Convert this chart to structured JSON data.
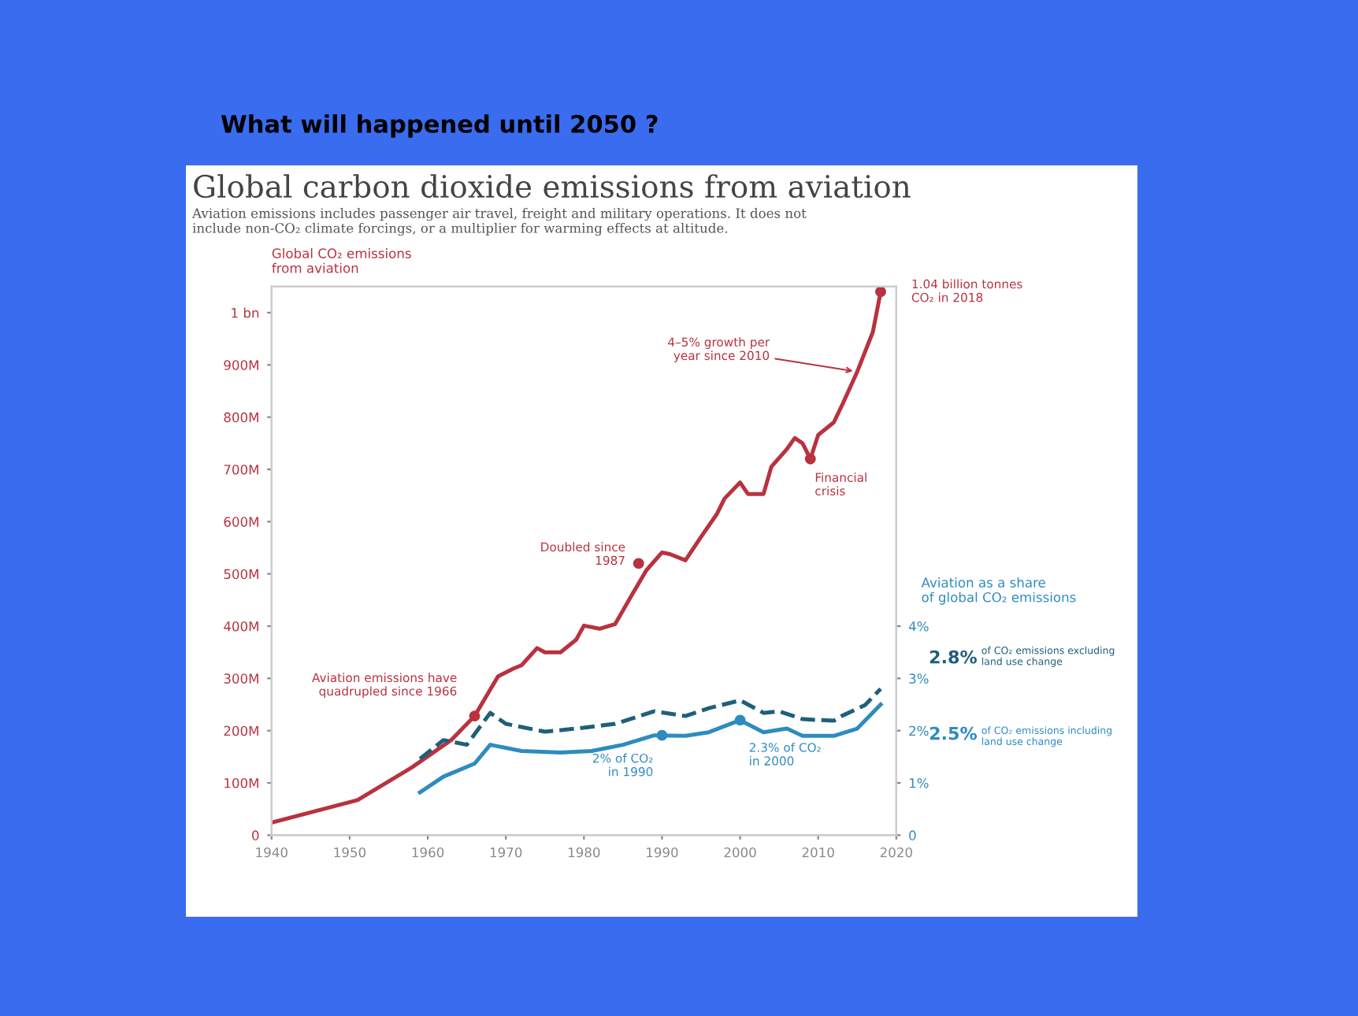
{
  "chart_data": {
    "type": "line",
    "title": "What will happened until 2050 ?",
    "subtitle": "Global carbon dioxide emissions from aviation",
    "ylabel": "Global CO₂ emissions from aviation",
    "y2label": "Aviation as a share of global CO₂ emissions",
    "annotations": [
      "Aviation emissions includes passenger air travel, freight and military operations. It does not include non-CO₂ climate forcings, or a multiplier for warming effects at altitude.",
      {
        "text": "Aviation emissions have quadrupled since 1966",
        "x": 1966,
        "y": 228000000
      },
      {
        "text": "Doubled since 1987",
        "x": 1987,
        "y": 520000000
      },
      {
        "text": "Financial crisis",
        "x": 2009,
        "y": 720000000
      },
      {
        "text": "4–5% growth per year since 2010",
        "x": 2015,
        "y": 887000000
      },
      {
        "text": "1.04 billion tonnes CO₂ in 2018",
        "x": 2018,
        "y": 1040000000
      },
      {
        "text": "2% of CO₂ in 1990",
        "x": 1990,
        "y": 191000000
      },
      {
        "text": "2.3% of CO₂ in 2000",
        "x": 2000,
        "y": 220000000
      }
    ],
    "series": [
      {
        "color": "#b8323f",
        "line_style": "solid",
        "x": [
          1940,
          1951,
          1958,
          1963,
          1966,
          1969,
          1971,
          1972,
          1974,
          1975,
          1977,
          1979,
          1980,
          1982,
          1984,
          1986,
          1988,
          1990,
          1991,
          1993,
          1995,
          1997,
          1998,
          2000,
          2001,
          2003,
          2004,
          2006,
          2007,
          2008,
          2009,
          2010,
          2012,
          2013,
          2015,
          2017,
          2018
        ],
        "values": [
          24000000,
          67000000,
          130000000,
          182000000,
          228000000,
          304000000,
          319000000,
          325000000,
          358000000,
          350000000,
          350000000,
          374000000,
          401000000,
          395000000,
          404000000,
          456000000,
          507000000,
          541000000,
          538000000,
          526000000,
          571000000,
          614000000,
          644000000,
          675000000,
          653000000,
          653000000,
          705000000,
          739000000,
          760000000,
          750000000,
          720000000,
          766000000,
          790000000,
          821000000,
          887000000,
          963000000,
          1040000000
        ]
      },
      {
        "name": "2.8% of CO₂ emissions excluding land use change",
        "axis": "y2",
        "color": "#1f5f7a",
        "line_style": "dashed",
        "x": [
          1959,
          1962,
          1965,
          1968,
          1970,
          1975,
          1979,
          1984,
          1989,
          1993,
          1996,
          2000,
          2003,
          2005,
          2008,
          2012,
          2013,
          2016,
          2018
        ],
        "values": [
          1.46,
          1.82,
          1.73,
          2.34,
          2.13,
          1.98,
          2.04,
          2.13,
          2.37,
          2.28,
          2.43,
          2.58,
          2.34,
          2.37,
          2.22,
          2.19,
          2.28,
          2.49,
          2.8
        ]
      },
      {
        "name": "2.5% of CO₂ emissions including land use change",
        "axis": "y2",
        "color": "#2e8bc0",
        "line_style": "solid",
        "x": [
          1959,
          1962,
          1966,
          1968,
          1972,
          1977,
          1981,
          1985,
          1989,
          1993,
          1996,
          2000,
          2003,
          2006,
          2008,
          2012,
          2015,
          2018
        ],
        "values": [
          0.82,
          1.12,
          1.37,
          1.73,
          1.61,
          1.58,
          1.61,
          1.73,
          1.91,
          1.9,
          1.97,
          2.2,
          1.97,
          2.04,
          1.9,
          1.9,
          2.04,
          2.5
        ]
      }
    ],
    "xlim": [
      1940,
      2020
    ],
    "xticks": [
      1940,
      1950,
      1960,
      1970,
      1980,
      1990,
      2000,
      2010,
      2020
    ],
    "ylim": [
      0,
      1050000000
    ],
    "yticks": [
      0,
      {
        "value": 100000000,
        "label": "100M"
      },
      {
        "value": 200000000,
        "label": "200M"
      },
      {
        "value": 300000000,
        "label": "300M"
      },
      {
        "value": 400000000,
        "label": "400M"
      },
      {
        "value": 500000000,
        "label": "500M"
      },
      {
        "value": 600000000,
        "label": "600M"
      },
      {
        "value": 700000000,
        "label": "700M"
      },
      {
        "value": 800000000,
        "label": "800M"
      },
      {
        "value": 900000000,
        "label": "900M"
      },
      {
        "value": 1000000000,
        "label": "1 bn"
      }
    ],
    "y2lim": [
      0,
      10.5
    ],
    "y2ticks": [
      0,
      {
        "value": 1,
        "label": "1%"
      },
      {
        "value": 2,
        "label": "2%"
      },
      {
        "value": 3,
        "label": "3%"
      },
      {
        "value": 4,
        "label": "4%"
      }
    ],
    "grid": false,
    "legend": false
  }
}
